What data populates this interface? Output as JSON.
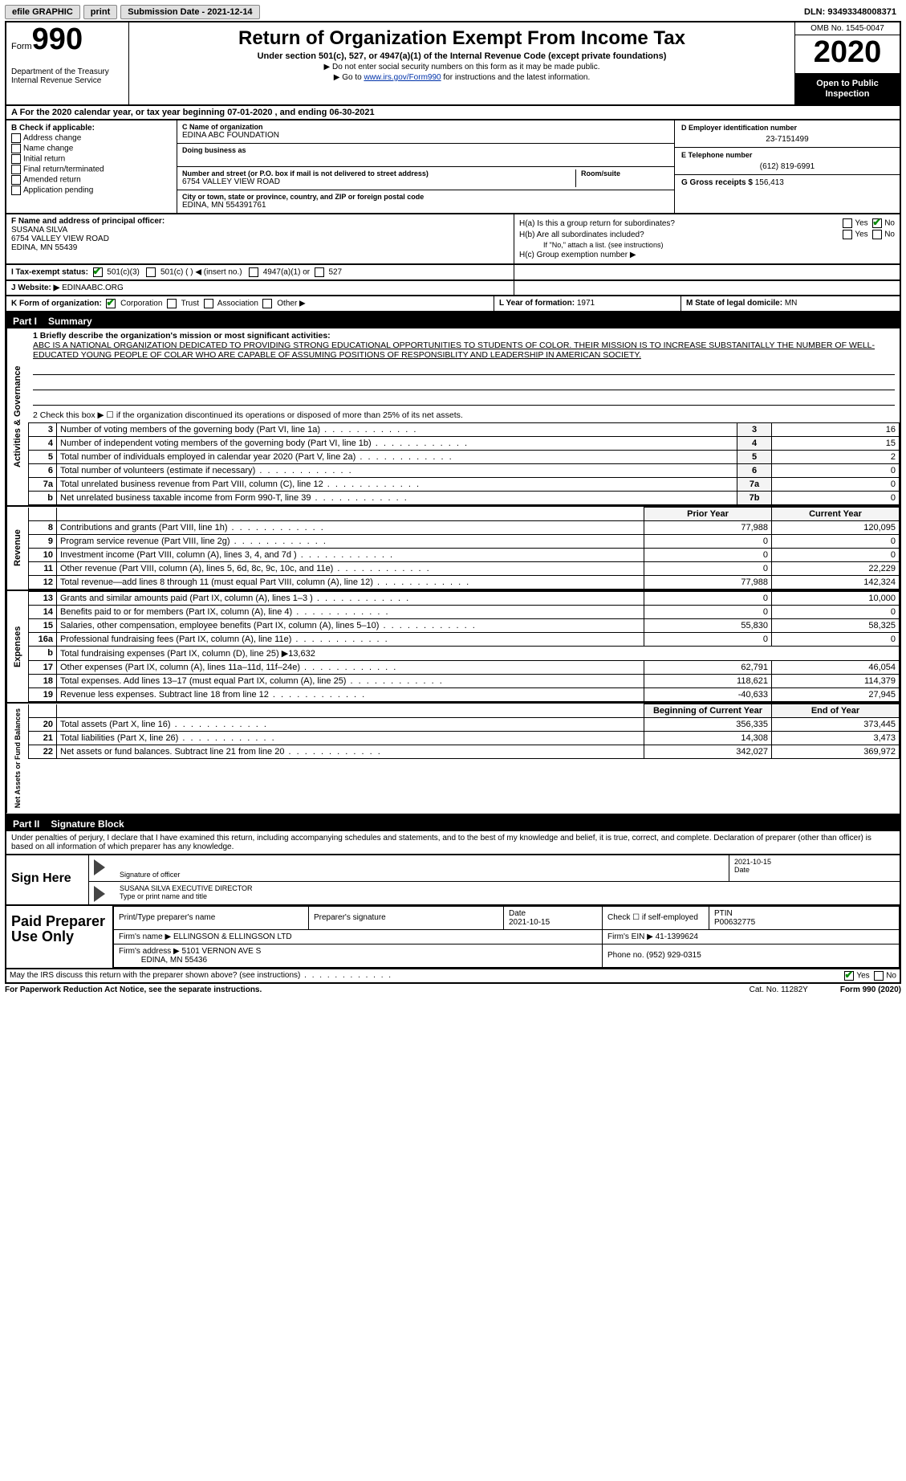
{
  "topbar": {
    "efile": "efile GRAPHIC",
    "print": "print",
    "sub_label": "Submission Date - ",
    "sub_date": "2021-12-14",
    "dln_label": "DLN: ",
    "dln": "93493348008371"
  },
  "header": {
    "form_word": "Form",
    "form_no": "990",
    "dept1": "Department of the Treasury",
    "dept2": "Internal Revenue Service",
    "title": "Return of Organization Exempt From Income Tax",
    "sub": "Under section 501(c), 527, or 4947(a)(1) of the Internal Revenue Code (except private foundations)",
    "note1": "Do not enter social security numbers on this form as it may be made public.",
    "note2_pre": "Go to ",
    "note2_link": "www.irs.gov/Form990",
    "note2_post": " for instructions and the latest information.",
    "omb": "OMB No. 1545-0047",
    "year": "2020",
    "inspect": "Open to Public Inspection"
  },
  "rowA": {
    "text": "A For the 2020 calendar year, or tax year beginning 07-01-2020   , and ending 06-30-2021"
  },
  "colB": {
    "title": "B Check if applicable:",
    "items": [
      "Address change",
      "Name change",
      "Initial return",
      "Final return/terminated",
      "Amended return",
      "Application pending"
    ]
  },
  "colC": {
    "name_lbl": "C Name of organization",
    "name": "EDINA ABC FOUNDATION",
    "dba_lbl": "Doing business as",
    "dba": "",
    "addr_lbl": "Number and street (or P.O. box if mail is not delivered to street address)",
    "room_lbl": "Room/suite",
    "addr": "6754 VALLEY VIEW ROAD",
    "city_lbl": "City or town, state or province, country, and ZIP or foreign postal code",
    "city": "EDINA, MN  554391761"
  },
  "colDE": {
    "d_lbl": "D Employer identification number",
    "d_val": "23-7151499",
    "e_lbl": "E Telephone number",
    "e_val": "(612) 819-6991",
    "g_lbl": "G Gross receipts $",
    "g_val": "156,413"
  },
  "f": {
    "lbl": "F Name and address of principal officer:",
    "name": "SUSANA SILVA",
    "addr1": "6754 VALLEY VIEW ROAD",
    "addr2": "EDINA, MN  55439"
  },
  "h": {
    "a": "H(a)  Is this a group return for subordinates?",
    "b": "H(b)  Are all subordinates included?",
    "bnote": "If \"No,\" attach a list. (see instructions)",
    "c": "H(c)  Group exemption number ▶",
    "yes": "Yes",
    "no": "No"
  },
  "rowI": {
    "lbl": "I   Tax-exempt status:",
    "o1": "501(c)(3)",
    "o2": "501(c) (  ) ◀ (insert no.)",
    "o3": "4947(a)(1) or",
    "o4": "527"
  },
  "rowJ": {
    "lbl": "J  Website: ▶",
    "val": "EDINAABC.ORG"
  },
  "rowK": {
    "lbl": "K Form of organization:",
    "o1": "Corporation",
    "o2": "Trust",
    "o3": "Association",
    "o4": "Other ▶",
    "l_lbl": "L Year of formation:",
    "l_val": "1971",
    "m_lbl": "M State of legal domicile:",
    "m_val": "MN"
  },
  "part1": {
    "hdr": "Part I",
    "title": "Summary",
    "q1_lbl": "1  Briefly describe the organization's mission or most significant activities:",
    "mission": "ABC IS A NATIONAL ORGANIZATION DEDICATED TO PROVIDING STRONG EDUCATIONAL OPPORTUNITIES TO STUDENTS OF COLOR. THEIR MISSION IS TO INCREASE SUBSTANITALLY THE NUMBER OF WELL-EDUCATED YOUNG PEOPLE OF COLAR WHO ARE CAPABLE OF ASSUMING POSITIONS OF RESPONSIBLITY AND LEADERSHIP IN AMERICAN SOCIETY.",
    "q2": "2  Check this box ▶ ☐ if the organization discontinued its operations or disposed of more than 25% of its net assets.",
    "lines_gov": [
      {
        "n": "3",
        "d": "Number of voting members of the governing body (Part VI, line 1a)",
        "box": "3",
        "v": "16"
      },
      {
        "n": "4",
        "d": "Number of independent voting members of the governing body (Part VI, line 1b)",
        "box": "4",
        "v": "15"
      },
      {
        "n": "5",
        "d": "Total number of individuals employed in calendar year 2020 (Part V, line 2a)",
        "box": "5",
        "v": "2"
      },
      {
        "n": "6",
        "d": "Total number of volunteers (estimate if necessary)",
        "box": "6",
        "v": "0"
      },
      {
        "n": "7a",
        "d": "Total unrelated business revenue from Part VIII, column (C), line 12",
        "box": "7a",
        "v": "0"
      },
      {
        "n": "b",
        "d": "Net unrelated business taxable income from Form 990-T, line 39",
        "box": "7b",
        "v": "0"
      }
    ],
    "py": "Prior Year",
    "cy": "Current Year",
    "rev": [
      {
        "n": "8",
        "d": "Contributions and grants (Part VIII, line 1h)",
        "p": "77,988",
        "c": "120,095"
      },
      {
        "n": "9",
        "d": "Program service revenue (Part VIII, line 2g)",
        "p": "0",
        "c": "0"
      },
      {
        "n": "10",
        "d": "Investment income (Part VIII, column (A), lines 3, 4, and 7d )",
        "p": "0",
        "c": "0"
      },
      {
        "n": "11",
        "d": "Other revenue (Part VIII, column (A), lines 5, 6d, 8c, 9c, 10c, and 11e)",
        "p": "0",
        "c": "22,229"
      },
      {
        "n": "12",
        "d": "Total revenue—add lines 8 through 11 (must equal Part VIII, column (A), line 12)",
        "p": "77,988",
        "c": "142,324"
      }
    ],
    "exp": [
      {
        "n": "13",
        "d": "Grants and similar amounts paid (Part IX, column (A), lines 1–3 )",
        "p": "0",
        "c": "10,000"
      },
      {
        "n": "14",
        "d": "Benefits paid to or for members (Part IX, column (A), line 4)",
        "p": "0",
        "c": "0"
      },
      {
        "n": "15",
        "d": "Salaries, other compensation, employee benefits (Part IX, column (A), lines 5–10)",
        "p": "55,830",
        "c": "58,325"
      },
      {
        "n": "16a",
        "d": "Professional fundraising fees (Part IX, column (A), line 11e)",
        "p": "0",
        "c": "0"
      },
      {
        "n": "b",
        "d": "Total fundraising expenses (Part IX, column (D), line 25) ▶13,632",
        "p": "",
        "c": "",
        "noval": true
      },
      {
        "n": "17",
        "d": "Other expenses (Part IX, column (A), lines 11a–11d, 11f–24e)",
        "p": "62,791",
        "c": "46,054"
      },
      {
        "n": "18",
        "d": "Total expenses. Add lines 13–17 (must equal Part IX, column (A), line 25)",
        "p": "118,621",
        "c": "114,379"
      },
      {
        "n": "19",
        "d": "Revenue less expenses. Subtract line 18 from line 12",
        "p": "-40,633",
        "c": "27,945"
      }
    ],
    "bcy": "Beginning of Current Year",
    "eoy": "End of Year",
    "net": [
      {
        "n": "20",
        "d": "Total assets (Part X, line 16)",
        "p": "356,335",
        "c": "373,445"
      },
      {
        "n": "21",
        "d": "Total liabilities (Part X, line 26)",
        "p": "14,308",
        "c": "3,473"
      },
      {
        "n": "22",
        "d": "Net assets or fund balances. Subtract line 21 from line 20",
        "p": "342,027",
        "c": "369,972"
      }
    ],
    "tab_gov": "Activities & Governance",
    "tab_rev": "Revenue",
    "tab_exp": "Expenses",
    "tab_net": "Net Assets or Fund Balances"
  },
  "part2": {
    "hdr": "Part II",
    "title": "Signature Block",
    "decl": "Under penalties of perjury, I declare that I have examined this return, including accompanying schedules and statements, and to the best of my knowledge and belief, it is true, correct, and complete. Declaration of preparer (other than officer) is based on all information of which preparer has any knowledge.",
    "sign_here": "Sign Here",
    "sig_officer": "Signature of officer",
    "date_lbl": "Date",
    "sig_date": "2021-10-15",
    "typed": "SUSANA SILVA  EXECUTIVE DIRECTOR",
    "typed_lbl": "Type or print name and title"
  },
  "paid": {
    "label": "Paid Preparer Use Only",
    "print_lbl": "Print/Type preparer's name",
    "psig_lbl": "Preparer's signature",
    "date_lbl": "Date",
    "date": "2021-10-15",
    "check_lbl": "Check ☐ if self-employed",
    "ptin_lbl": "PTIN",
    "ptin": "P00632775",
    "firm_name_lbl": "Firm's name   ▶",
    "firm_name": "ELLINGSON & ELLINGSON LTD",
    "firm_ein_lbl": "Firm's EIN ▶",
    "firm_ein": "41-1399624",
    "firm_addr_lbl": "Firm's address ▶",
    "firm_addr1": "5101 VERNON AVE S",
    "firm_addr2": "EDINA, MN  55436",
    "phone_lbl": "Phone no.",
    "phone": "(952) 929-0315"
  },
  "discuss": {
    "q": "May the IRS discuss this return with the preparer shown above? (see instructions)",
    "yes": "Yes",
    "no": "No"
  },
  "footer": {
    "left": "For Paperwork Reduction Act Notice, see the separate instructions.",
    "mid": "Cat. No. 11282Y",
    "right": "Form 990 (2020)"
  }
}
